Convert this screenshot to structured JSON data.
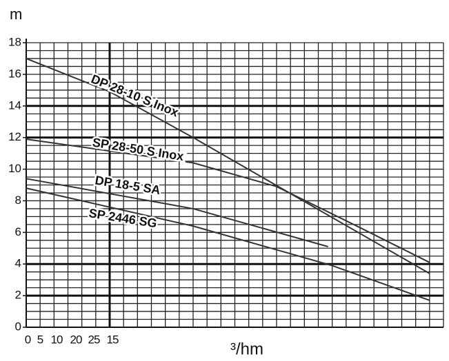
{
  "chart_data": {
    "type": "line",
    "y_title": "m",
    "x_title": "³/hm",
    "x_tick_labels": [
      "0",
      "5",
      "10",
      "20",
      "25",
      "15"
    ],
    "xlim": [
      0,
      30
    ],
    "ylim": [
      0,
      18
    ],
    "yticks": [
      0,
      2,
      4,
      6,
      8,
      10,
      12,
      14,
      16,
      18
    ],
    "grid": true,
    "minor_x_step": 1,
    "minor_y_step": 0.5,
    "thick_grid_y": [
      2,
      4,
      12,
      14
    ],
    "thick_grid_x": [
      6
    ],
    "series": [
      {
        "name": "DP 28-10 S Inox",
        "color": "#333333",
        "x": [
          0,
          6,
          12,
          29
        ],
        "values": [
          17,
          14.9,
          12,
          3.4
        ]
      },
      {
        "name": "SP 28-50 S Inox",
        "color": "#333333",
        "x": [
          0,
          12,
          18,
          24,
          29
        ],
        "values": [
          11.9,
          10.4,
          8.9,
          6.3,
          4.1
        ]
      },
      {
        "name": "DP 18-5 SA",
        "color": "#333333",
        "x": [
          0,
          12,
          21.7
        ],
        "values": [
          9.4,
          7.5,
          5.1
        ]
      },
      {
        "name": "SP 2446 SG",
        "color": "#333333",
        "x": [
          0,
          12,
          22,
          29
        ],
        "values": [
          8.8,
          6.4,
          3.9,
          1.7
        ]
      }
    ]
  }
}
